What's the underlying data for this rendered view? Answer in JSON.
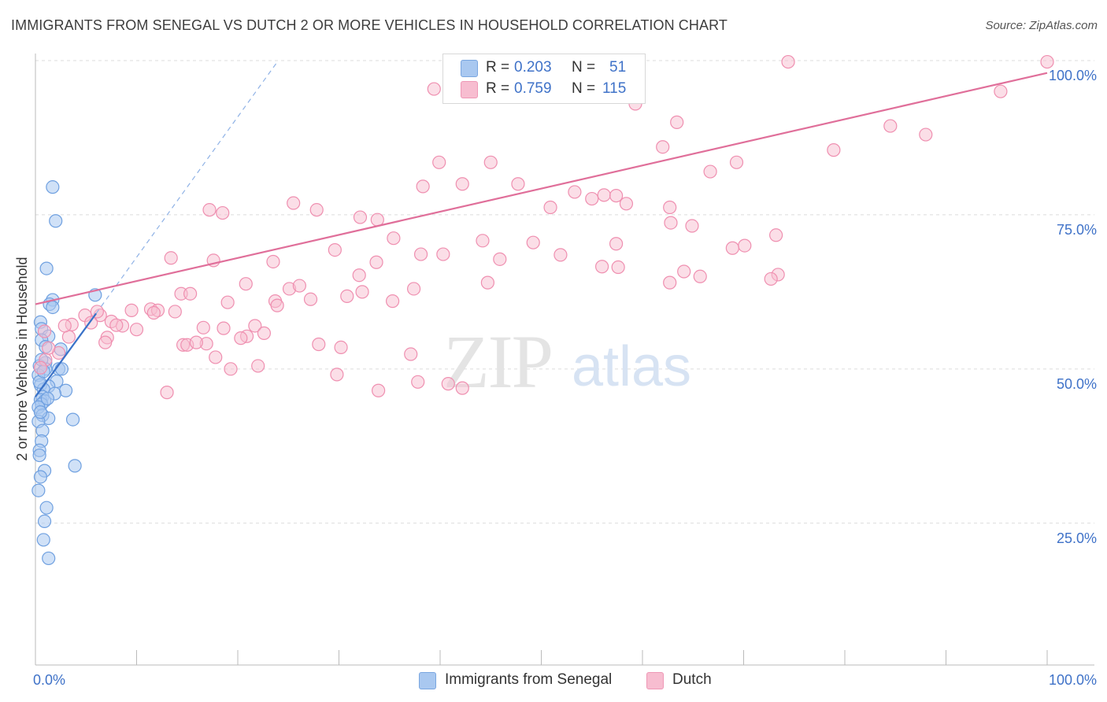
{
  "title": "IMMIGRANTS FROM SENEGAL VS DUTCH 2 OR MORE VEHICLES IN HOUSEHOLD CORRELATION CHART",
  "source": "Source: ZipAtlas.com",
  "watermark": {
    "zip": "ZIP",
    "atlas": "atlas"
  },
  "legend": {
    "rows": [
      {
        "r_label": "R =",
        "r_value": "0.203",
        "n_label": "N =",
        "n_value": "51",
        "color": "#a9c8f0"
      },
      {
        "r_label": "R =",
        "r_value": "0.759",
        "n_label": "N =",
        "n_value": "115",
        "color": "#f7bdd0"
      }
    ]
  },
  "bottom_legend": [
    {
      "label": "Immigrants from Senegal",
      "color": "#a9c8f0"
    },
    {
      "label": "Dutch",
      "color": "#f7bdd0"
    }
  ],
  "colors": {
    "blue_fill": "#a9c8f0",
    "blue_stroke": "#6fa0e0",
    "blue_line": "#3a72c8",
    "pink_fill": "#f7bdd0",
    "pink_stroke": "#ef8fb0",
    "pink_line": "#e06f9a",
    "tick_label": "#3f72c8",
    "grid": "#dcdcdc"
  },
  "chart_data": {
    "type": "scatter",
    "xlabel": "",
    "ylabel": "2 or more Vehicles in Household",
    "xlim": [
      0,
      100
    ],
    "ylim": [
      2,
      100
    ],
    "x_tick_labels": [
      {
        "value": 0,
        "label": "0.0%"
      },
      {
        "value": 100,
        "label": "100.0%"
      }
    ],
    "y_tick_labels": [
      {
        "value": 25,
        "label": "25.0%"
      },
      {
        "value": 50,
        "label": "50.0%"
      },
      {
        "value": 75,
        "label": "75.0%"
      },
      {
        "value": 100,
        "label": "100.0%"
      }
    ],
    "series": [
      {
        "name": "Immigrants from Senegal",
        "trend": {
          "x": [
            0,
            6
          ],
          "y": [
            45.5,
            59
          ],
          "extended": {
            "x": [
              6,
              24
            ],
            "y": [
              59,
              100
            ]
          }
        },
        "points": [
          [
            1.7,
            79.5
          ],
          [
            2.0,
            74
          ],
          [
            1.1,
            66.3
          ],
          [
            5.9,
            62.0
          ],
          [
            1.7,
            61.2
          ],
          [
            1.4,
            60.5
          ],
          [
            1.7,
            60.0
          ],
          [
            0.5,
            57.6
          ],
          [
            0.6,
            56.5
          ],
          [
            1.3,
            55.3
          ],
          [
            0.6,
            54.7
          ],
          [
            1.0,
            53.6
          ],
          [
            2.5,
            53.2
          ],
          [
            1.0,
            51.0
          ],
          [
            0.4,
            50.5
          ],
          [
            1.0,
            50.0
          ],
          [
            2.3,
            50.0
          ],
          [
            2.6,
            50.0
          ],
          [
            0.3,
            49.0
          ],
          [
            2.1,
            48.0
          ],
          [
            0.5,
            47.4
          ],
          [
            1.3,
            47.2
          ],
          [
            0.8,
            46.7
          ],
          [
            3.0,
            46.5
          ],
          [
            0.7,
            45.5
          ],
          [
            0.5,
            45.0
          ],
          [
            0.9,
            44.8
          ],
          [
            0.6,
            44.3
          ],
          [
            0.3,
            43.8
          ],
          [
            0.7,
            42.5
          ],
          [
            1.3,
            42.0
          ],
          [
            3.7,
            41.8
          ],
          [
            0.3,
            41.5
          ],
          [
            0.7,
            40.0
          ],
          [
            0.6,
            38.3
          ],
          [
            0.4,
            36.8
          ],
          [
            0.4,
            36.0
          ],
          [
            3.9,
            34.3
          ],
          [
            0.9,
            33.5
          ],
          [
            0.5,
            32.5
          ],
          [
            0.3,
            30.3
          ],
          [
            1.1,
            27.5
          ],
          [
            0.9,
            25.3
          ],
          [
            0.8,
            22.3
          ],
          [
            1.3,
            19.3
          ],
          [
            0.4,
            47.9
          ],
          [
            0.6,
            51.5
          ],
          [
            0.8,
            49.6
          ],
          [
            1.9,
            46.0
          ],
          [
            1.2,
            45.2
          ],
          [
            0.5,
            43.0
          ]
        ]
      },
      {
        "name": "Dutch",
        "trend": {
          "x": [
            0,
            100
          ],
          "y": [
            60.5,
            98
          ]
        },
        "points": [
          [
            74.4,
            99.8
          ],
          [
            100,
            99.8
          ],
          [
            39.4,
            95.4
          ],
          [
            95.4,
            95.0
          ],
          [
            59.3,
            93.0
          ],
          [
            63.4,
            90.0
          ],
          [
            84.5,
            89.4
          ],
          [
            88.0,
            88.0
          ],
          [
            62.0,
            86.0
          ],
          [
            78.9,
            85.5
          ],
          [
            39.9,
            83.5
          ],
          [
            45.0,
            83.5
          ],
          [
            69.3,
            83.5
          ],
          [
            66.7,
            82.0
          ],
          [
            47.7,
            80.0
          ],
          [
            42.2,
            80.0
          ],
          [
            38.3,
            79.6
          ],
          [
            53.3,
            78.7
          ],
          [
            56.2,
            78.2
          ],
          [
            57.4,
            78.1
          ],
          [
            55.0,
            77.6
          ],
          [
            25.5,
            76.9
          ],
          [
            58.4,
            76.8
          ],
          [
            50.9,
            76.2
          ],
          [
            62.7,
            76.2
          ],
          [
            17.2,
            75.8
          ],
          [
            27.8,
            75.8
          ],
          [
            18.5,
            75.3
          ],
          [
            32.1,
            74.6
          ],
          [
            33.8,
            74.2
          ],
          [
            62.8,
            73.7
          ],
          [
            64.9,
            73.2
          ],
          [
            73.2,
            71.7
          ],
          [
            35.4,
            71.2
          ],
          [
            44.2,
            70.8
          ],
          [
            49.2,
            70.5
          ],
          [
            57.4,
            70.3
          ],
          [
            70.1,
            70.0
          ],
          [
            68.9,
            69.6
          ],
          [
            29.6,
            69.3
          ],
          [
            38.1,
            68.6
          ],
          [
            40.3,
            68.6
          ],
          [
            45.9,
            67.8
          ],
          [
            51.9,
            68.5
          ],
          [
            13.4,
            68.0
          ],
          [
            17.6,
            67.6
          ],
          [
            23.5,
            67.4
          ],
          [
            33.7,
            67.3
          ],
          [
            56.0,
            66.6
          ],
          [
            57.6,
            66.5
          ],
          [
            64.1,
            65.8
          ],
          [
            73.4,
            65.3
          ],
          [
            32.0,
            65.2
          ],
          [
            65.7,
            65.0
          ],
          [
            72.7,
            64.6
          ],
          [
            44.7,
            64.0
          ],
          [
            62.7,
            64.0
          ],
          [
            20.8,
            63.8
          ],
          [
            25.1,
            63.0
          ],
          [
            26.1,
            63.5
          ],
          [
            37.4,
            63.0
          ],
          [
            32.3,
            62.5
          ],
          [
            14.4,
            62.2
          ],
          [
            15.3,
            62.2
          ],
          [
            30.8,
            61.8
          ],
          [
            23.7,
            61.0
          ],
          [
            35.3,
            61.0
          ],
          [
            27.2,
            61.3
          ],
          [
            19.0,
            60.8
          ],
          [
            23.9,
            60.3
          ],
          [
            9.5,
            59.5
          ],
          [
            11.4,
            59.7
          ],
          [
            12.1,
            59.5
          ],
          [
            4.9,
            58.7
          ],
          [
            6.4,
            58.7
          ],
          [
            11.7,
            59.1
          ],
          [
            7.5,
            57.7
          ],
          [
            5.5,
            57.5
          ],
          [
            3.6,
            57.2
          ],
          [
            8.6,
            57.0
          ],
          [
            21.7,
            57.0
          ],
          [
            13.8,
            59.3
          ],
          [
            16.6,
            56.7
          ],
          [
            18.6,
            56.6
          ],
          [
            10.0,
            56.4
          ],
          [
            22.6,
            55.8
          ],
          [
            20.9,
            55.3
          ],
          [
            7.1,
            55.1
          ],
          [
            6.9,
            54.3
          ],
          [
            14.6,
            53.9
          ],
          [
            15.0,
            53.9
          ],
          [
            16.9,
            54.1
          ],
          [
            28.0,
            54.0
          ],
          [
            30.2,
            53.5
          ],
          [
            37.1,
            52.4
          ],
          [
            15.9,
            54.3
          ],
          [
            17.8,
            51.9
          ],
          [
            2.3,
            52.6
          ],
          [
            1.0,
            51.5
          ],
          [
            0.5,
            50.2
          ],
          [
            19.3,
            50.0
          ],
          [
            29.8,
            49.1
          ],
          [
            37.8,
            47.9
          ],
          [
            40.8,
            47.6
          ],
          [
            42.2,
            46.9
          ],
          [
            33.9,
            46.5
          ],
          [
            22.0,
            50.5
          ],
          [
            3.3,
            55.2
          ],
          [
            1.3,
            53.4
          ],
          [
            2.9,
            57.0
          ],
          [
            0.9,
            56.1
          ],
          [
            13.0,
            46.2
          ],
          [
            20.3,
            55.0
          ],
          [
            8.0,
            57.1
          ],
          [
            6.1,
            59.3
          ]
        ]
      }
    ]
  }
}
